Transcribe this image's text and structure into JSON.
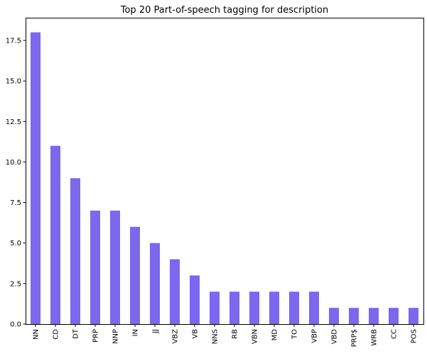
{
  "chart_data": {
    "type": "bar",
    "title": "Top 20 Part-of-speech tagging for description",
    "xlabel": "",
    "ylabel": "",
    "categories": [
      "NN",
      "CD",
      "DT",
      "PRP",
      "NNP",
      "IN",
      "JJ",
      "VBZ",
      "VB",
      "NNS",
      "RB",
      "VBN",
      "MD",
      "TO",
      "VBP",
      "VBD",
      "PRP$",
      "WRB",
      "CC",
      "POS"
    ],
    "values": [
      18,
      11,
      9,
      7,
      7,
      6,
      5,
      4,
      3,
      2,
      2,
      2,
      2,
      2,
      2,
      1,
      1,
      1,
      1,
      1
    ],
    "ylim": [
      0,
      18.9
    ],
    "yticks": [
      "0.0",
      "2.5",
      "5.0",
      "7.5",
      "10.0",
      "12.5",
      "15.0",
      "17.5"
    ],
    "grid": false,
    "bar_color": "#7b68ee"
  }
}
